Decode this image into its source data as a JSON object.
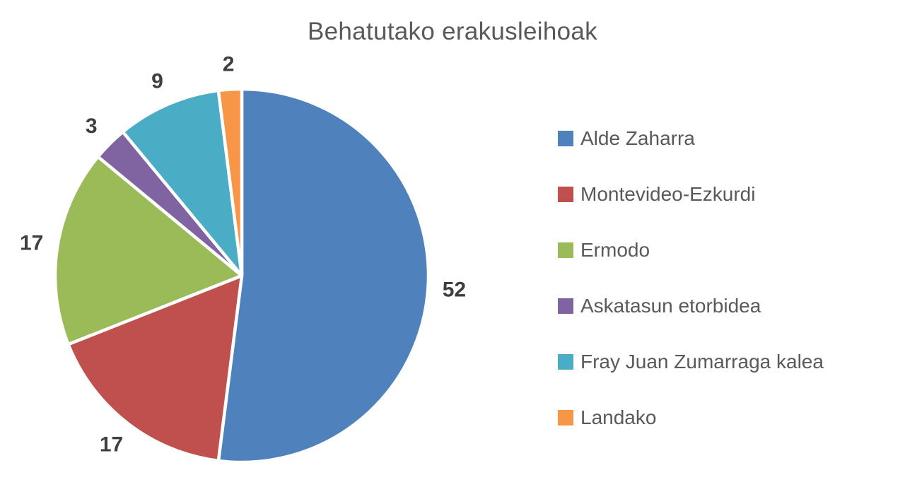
{
  "title": "Behatutako erakusleihoak",
  "chart_data": {
    "type": "pie",
    "title": "Behatutako erakusleihoak",
    "categories": [
      "Alde Zaharra",
      "Montevideo-Ezkurdi",
      "Ermodo",
      "Askatasun etorbidea",
      "Fray Juan Zumarraga kalea",
      "Landako"
    ],
    "values": [
      52,
      17,
      17,
      3,
      9,
      2
    ],
    "data_labels": [
      "52",
      "17",
      "17",
      "3",
      "9",
      "2"
    ],
    "slice_colors": [
      "#4F81BD",
      "#C0504D",
      "#9BBB59",
      "#8064A2",
      "#4BACC6",
      "#F79646"
    ],
    "slice_border_color": "#FFFFFF",
    "start_angle_deg": 0,
    "direction": "clockwise",
    "legend_position": "right",
    "label_position": "outside-end",
    "title_color": "#595959",
    "legend_text_color": "#595959",
    "data_label_color": "#3F3F3F",
    "background_color": "#FFFFFF"
  },
  "legend": {
    "items": [
      {
        "label": "Alde Zaharra",
        "color": "#4F81BD"
      },
      {
        "label": "Montevideo-Ezkurdi",
        "color": "#C0504D"
      },
      {
        "label": "Ermodo",
        "color": "#9BBB59"
      },
      {
        "label": "Askatasun etorbidea",
        "color": "#8064A2"
      },
      {
        "label": "Fray Juan Zumarraga kalea",
        "color": "#4BACC6"
      },
      {
        "label": "Landako",
        "color": "#F79646"
      }
    ]
  }
}
